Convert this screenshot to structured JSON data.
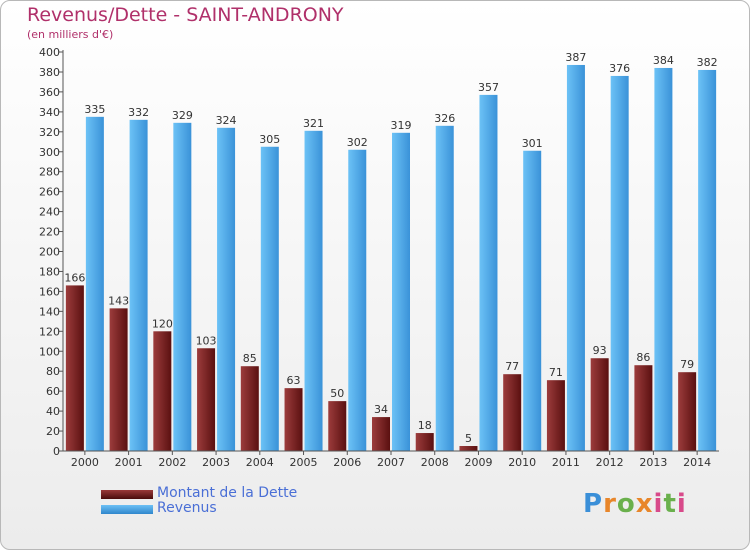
{
  "header": {
    "title": "Revenus/Dette - SAINT-ANDRONY",
    "subtitle": "(en milliers d'€)"
  },
  "logo": {
    "text": "Proxiti"
  },
  "colors": {
    "dette": "#7a1f1f",
    "revenus": "#4aa6e8",
    "title": "#b0306a",
    "legend_text": "#4a6fd6"
  },
  "chart_data": {
    "type": "bar",
    "title": "Revenus/Dette - SAINT-ANDRONY",
    "ylabel": "(en milliers d'€)",
    "xlabel": "",
    "categories": [
      "2000",
      "2001",
      "2002",
      "2003",
      "2004",
      "2005",
      "2006",
      "2007",
      "2008",
      "2009",
      "2010",
      "2011",
      "2012",
      "2013",
      "2014"
    ],
    "series": [
      {
        "name": "Montant de la Dette",
        "values": [
          166,
          143,
          120,
          103,
          85,
          63,
          50,
          34,
          18,
          5,
          77,
          71,
          93,
          86,
          79
        ]
      },
      {
        "name": "Revenus",
        "values": [
          335,
          332,
          329,
          324,
          305,
          321,
          302,
          319,
          326,
          357,
          301,
          387,
          376,
          384,
          382
        ]
      }
    ],
    "ylim": [
      0,
      400
    ],
    "yticks": [
      0,
      20,
      40,
      60,
      80,
      100,
      120,
      140,
      160,
      180,
      200,
      220,
      240,
      260,
      280,
      300,
      320,
      340,
      360,
      380,
      400
    ],
    "grid": false,
    "legend": "bottom-left"
  }
}
